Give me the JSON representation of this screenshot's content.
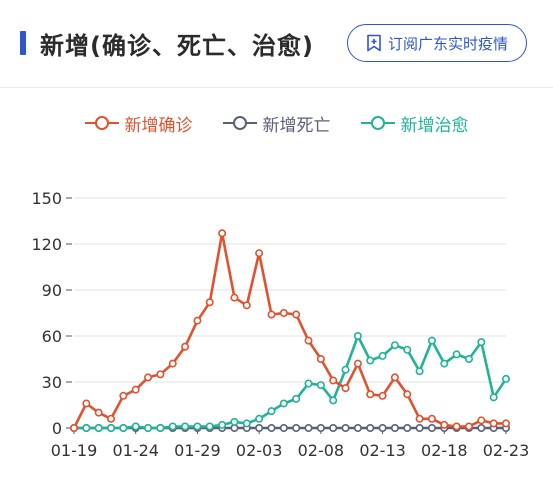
{
  "header": {
    "title": "新增(确诊、死亡、治愈)",
    "subscribe_label": "订阅广东实时疫情",
    "subscribe_icon": "bookmark-plus-icon",
    "accent_color": "#2f57c9"
  },
  "chart_data": {
    "type": "line",
    "title": "",
    "xlabel": "",
    "ylabel": "",
    "ylim": [
      0,
      150
    ],
    "yticks": [
      0,
      30,
      60,
      90,
      120,
      150
    ],
    "xtick_labels": [
      "01-19",
      "01-24",
      "01-29",
      "02-03",
      "02-08",
      "02-13",
      "02-18",
      "02-23"
    ],
    "x": [
      "01-19",
      "01-20",
      "01-21",
      "01-22",
      "01-23",
      "01-24",
      "01-25",
      "01-26",
      "01-27",
      "01-28",
      "01-29",
      "01-30",
      "01-31",
      "02-01",
      "02-02",
      "02-03",
      "02-04",
      "02-05",
      "02-06",
      "02-07",
      "02-08",
      "02-09",
      "02-10",
      "02-11",
      "02-12",
      "02-13",
      "02-14",
      "02-15",
      "02-16",
      "02-17",
      "02-18",
      "02-19",
      "02-20",
      "02-21",
      "02-22",
      "02-23"
    ],
    "grid": "horizontal",
    "legend_position": "top-center",
    "series": [
      {
        "name": "新增确诊",
        "color": "#e0522f",
        "values": [
          0,
          16,
          10,
          6,
          21,
          25,
          33,
          35,
          42,
          53,
          70,
          82,
          127,
          85,
          80,
          114,
          74,
          75,
          74,
          57,
          45,
          31,
          26,
          42,
          22,
          21,
          33,
          22,
          6,
          6,
          2,
          1,
          1,
          5,
          3,
          3
        ]
      },
      {
        "name": "新增死亡",
        "color": "#5a5f7a",
        "values": [
          0,
          0,
          0,
          0,
          0,
          0,
          0,
          0,
          0,
          0,
          0,
          0,
          0,
          0,
          0,
          0,
          0,
          0,
          0,
          0,
          0,
          0,
          0,
          0,
          0,
          0,
          0,
          0,
          0,
          0,
          0,
          0,
          0,
          0,
          0,
          0
        ]
      },
      {
        "name": "新增治愈",
        "color": "#20b399",
        "values": [
          0,
          0,
          0,
          0,
          0,
          1,
          0,
          0,
          1,
          1,
          1,
          1,
          2,
          4,
          3,
          6,
          11,
          16,
          19,
          29,
          28,
          18,
          38,
          60,
          44,
          47,
          54,
          51,
          37,
          57,
          42,
          48,
          45,
          56,
          20,
          32
        ]
      }
    ]
  }
}
